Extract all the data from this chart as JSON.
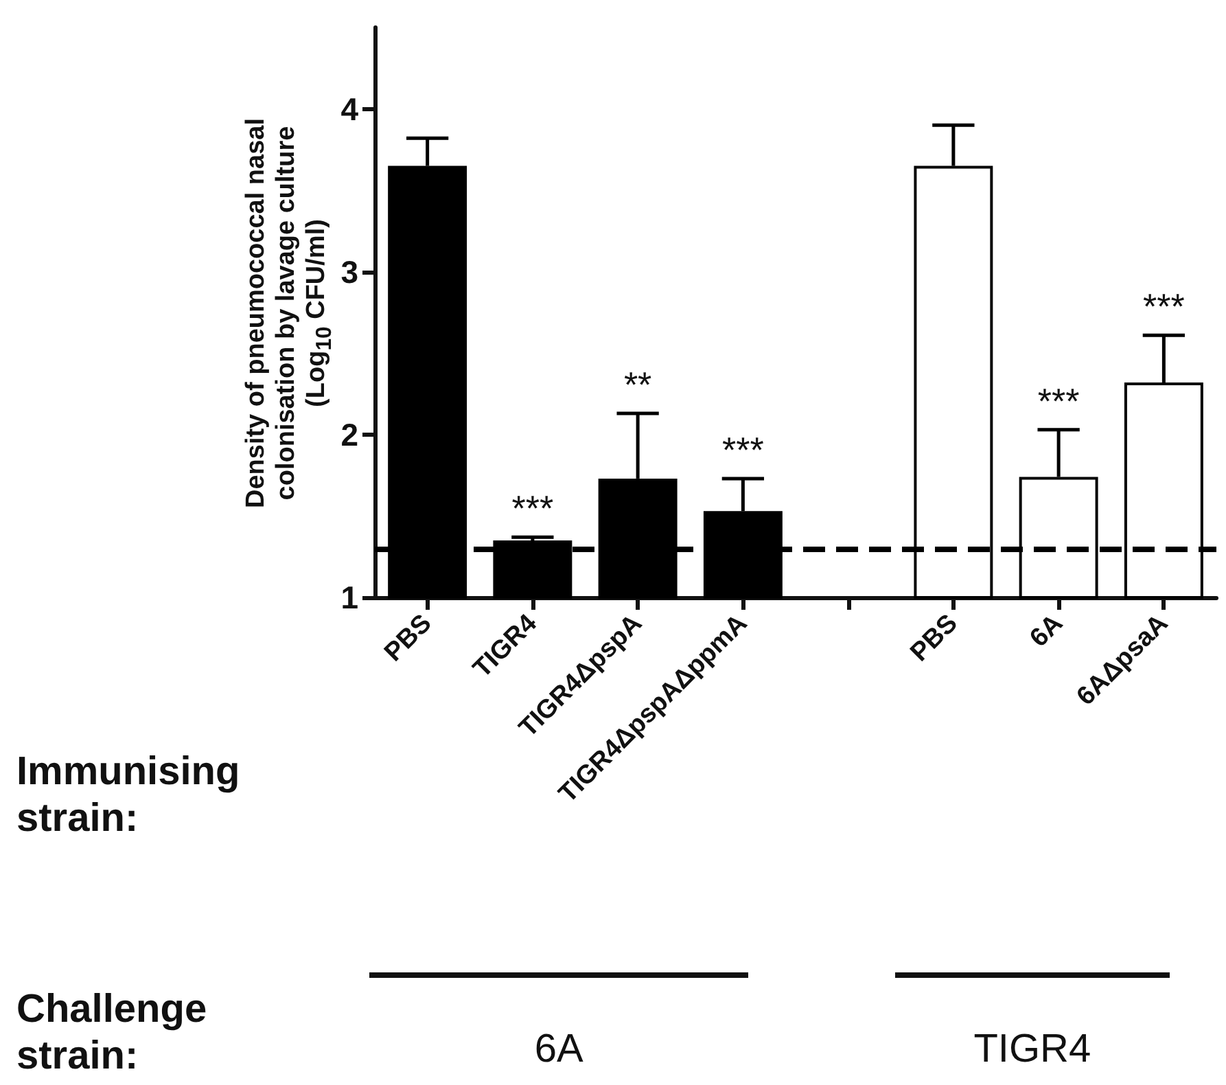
{
  "chart_data": {
    "type": "bar",
    "ylabel": "Density of pneumococcal nasal\ncolonisation by lavage culture\n(Log$_{10}$ CFU/ml)",
    "categories": [
      "PBS",
      "TIGR4",
      "TIGR4ΔpspA",
      "TIGR4ΔpspAΔppmA",
      null,
      "PBS",
      "6A",
      "6AΔpsaA"
    ],
    "values": [
      3.65,
      1.35,
      1.73,
      1.53,
      null,
      3.65,
      1.74,
      2.32
    ],
    "colors": [
      "#000000",
      "#000000",
      "#000000",
      "#000000",
      null,
      "#ffffff",
      "#ffffff",
      "#ffffff"
    ],
    "errors": [
      [
        3.65,
        3.82
      ],
      [
        1.35,
        1.37
      ],
      [
        1.73,
        2.13
      ],
      [
        1.53,
        1.73
      ],
      null,
      [
        3.65,
        3.9
      ],
      [
        1.74,
        2.03
      ],
      [
        2.32,
        2.61
      ]
    ],
    "ylim": [
      1,
      4.5
    ],
    "yticks": [
      1,
      2,
      3,
      4
    ],
    "grid": false,
    "ref_lines": [
      {
        "axis": "y",
        "value": 1.3,
        "line_style": "dashed",
        "color": "#000000"
      }
    ],
    "annotations": [
      "Immunising strain:",
      "Challenge strain:",
      "6A",
      "TIGR4",
      {
        "text": "***",
        "x": "TIGR4",
        "y": 1.35
      },
      {
        "text": "**",
        "x": "TIGR4ΔpspA",
        "y": 1.73
      },
      {
        "text": "***",
        "x": "TIGR4ΔpspAΔppmA",
        "y": 1.53
      },
      {
        "text": "***",
        "x": "6A",
        "y": 1.74
      },
      {
        "text": "***",
        "x": "6AΔpsaA",
        "y": 2.32
      }
    ]
  }
}
